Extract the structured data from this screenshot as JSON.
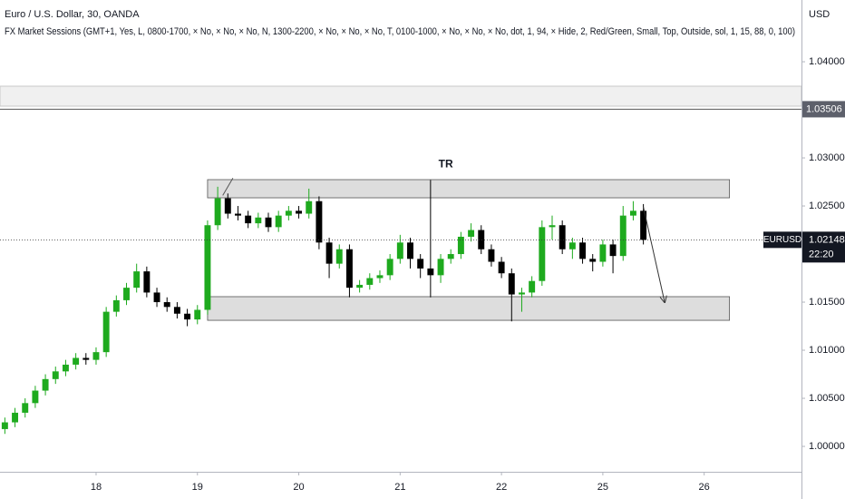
{
  "chart_data": {
    "type": "candlestick",
    "title": "Euro / U.S. Dollar, 30, OANDA",
    "subtitle": "FX Market Sessions (GMT+1, Yes, L, 0800-1700, × No, × No, × No, N, 1300-2200, × No, × No, × No, T, 0100-1000, × No, × No, × No, dot, 1, 94, × Hide, 2, Red/Green, Small, Top, Outside, sol, 1, 15, 88, 0, 100)",
    "currency": "USD",
    "timer": "22:20",
    "up_color": "#1eaa1e",
    "down_color": "#000000",
    "grid": false,
    "xlim": [
      0.052,
      7.96
    ],
    "xticks": [
      {
        "value": 1,
        "label": "18"
      },
      {
        "value": 2,
        "label": "19"
      },
      {
        "value": 3,
        "label": "20"
      },
      {
        "value": 4,
        "label": "21"
      },
      {
        "value": 5,
        "label": "22"
      },
      {
        "value": 6,
        "label": "25"
      },
      {
        "value": 7,
        "label": "26"
      }
    ],
    "ylim": [
      0.99736,
      1.04642
    ],
    "yticks": [
      {
        "value": 1.0,
        "label": "1.00000"
      },
      {
        "value": 1.005,
        "label": "1.00500"
      },
      {
        "value": 1.01,
        "label": "1.01000"
      },
      {
        "value": 1.015,
        "label": "1.01500"
      },
      {
        "value": 1.025,
        "label": "1.02500"
      },
      {
        "value": 1.03,
        "label": "1.03000"
      },
      {
        "value": 1.04,
        "label": "1.04000"
      }
    ],
    "price_line": 1.03506,
    "x": [
      0.1,
      0.2,
      0.3,
      0.4,
      0.5,
      0.6,
      0.7,
      0.8,
      0.9,
      1.0,
      1.1,
      1.2,
      1.3,
      1.4,
      1.5,
      1.6,
      1.7,
      1.8,
      1.9,
      2.0,
      2.1,
      2.2,
      2.3,
      2.4,
      2.5,
      2.6,
      2.7,
      2.8,
      2.9,
      3.0,
      3.1,
      3.2,
      3.3,
      3.4,
      3.5,
      3.6,
      3.7,
      3.8,
      3.9,
      4.0,
      4.1,
      4.2,
      4.3,
      4.4,
      4.5,
      4.6,
      4.7,
      4.8,
      4.9,
      5.0,
      5.1,
      5.2,
      5.3,
      5.4,
      5.5,
      5.6,
      5.7,
      5.8,
      5.9,
      6.0,
      6.1,
      6.2,
      6.3,
      6.4
    ],
    "series": [
      {
        "name": "EURUSD",
        "open": [
          1.0018,
          1.0025,
          1.0035,
          1.0045,
          1.0058,
          1.007,
          1.0078,
          1.0085,
          1.0092,
          1.009,
          1.0098,
          1.014,
          1.0152,
          1.0165,
          1.0182,
          1.016,
          1.015,
          1.0145,
          1.0138,
          1.0132,
          1.0142,
          1.023,
          1.0258,
          1.0242,
          1.024,
          1.0232,
          1.0238,
          1.0228,
          1.024,
          1.0245,
          1.0242,
          1.0255,
          1.0212,
          1.019,
          1.0205,
          1.0165,
          1.0168,
          1.0175,
          1.0178,
          1.0195,
          1.0212,
          1.0195,
          1.0185,
          1.0178,
          1.0195,
          1.02,
          1.0218,
          1.0225,
          1.0205,
          1.0192,
          1.018,
          1.0158,
          1.016,
          1.0172,
          1.0228,
          1.023,
          1.0205,
          1.0212,
          1.0195,
          1.0192,
          1.021,
          1.0198,
          1.024,
          1.0245
        ],
        "high": [
          1.003,
          1.004,
          1.005,
          1.0063,
          1.0075,
          1.0083,
          1.009,
          1.0097,
          1.0097,
          1.0103,
          1.0145,
          1.0157,
          1.017,
          1.019,
          1.0187,
          1.0165,
          1.0155,
          1.015,
          1.0143,
          1.0147,
          1.0235,
          1.027,
          1.0263,
          1.025,
          1.0245,
          1.0243,
          1.0243,
          1.0245,
          1.025,
          1.025,
          1.0268,
          1.026,
          1.0217,
          1.021,
          1.021,
          1.0173,
          1.018,
          1.0183,
          1.02,
          1.022,
          1.0217,
          1.02,
          1.0277,
          1.02,
          1.0205,
          1.0223,
          1.0232,
          1.023,
          1.021,
          1.0197,
          1.0185,
          1.0165,
          1.0177,
          1.0235,
          1.024,
          1.0235,
          1.0217,
          1.0217,
          1.02,
          1.0215,
          1.0215,
          1.025,
          1.0255,
          1.0252
        ],
        "low": [
          1.0013,
          1.002,
          1.003,
          1.004,
          1.0053,
          1.0065,
          1.0073,
          1.008,
          1.0085,
          1.0085,
          1.0093,
          1.0135,
          1.0147,
          1.016,
          1.0155,
          1.0145,
          1.014,
          1.0133,
          1.0125,
          1.0127,
          1.0137,
          1.0225,
          1.0237,
          1.0235,
          1.0227,
          1.0227,
          1.0223,
          1.0223,
          1.0235,
          1.0237,
          1.0237,
          1.0205,
          1.0175,
          1.0185,
          1.0155,
          1.016,
          1.0163,
          1.017,
          1.0173,
          1.019,
          1.0185,
          1.0175,
          1.0155,
          1.017,
          1.019,
          1.0195,
          1.0213,
          1.02,
          1.0187,
          1.0175,
          1.013,
          1.014,
          1.0155,
          1.0167,
          1.0215,
          1.02,
          1.0195,
          1.019,
          1.0182,
          1.0187,
          1.018,
          1.0193,
          1.0235,
          1.021
        ],
        "close": [
          1.0025,
          1.0035,
          1.0045,
          1.0058,
          1.007,
          1.0078,
          1.0085,
          1.0092,
          1.009,
          1.0098,
          1.014,
          1.0152,
          1.0165,
          1.0182,
          1.016,
          1.015,
          1.0145,
          1.0138,
          1.0132,
          1.0142,
          1.023,
          1.0258,
          1.0242,
          1.024,
          1.0232,
          1.0238,
          1.0228,
          1.024,
          1.0245,
          1.0242,
          1.0255,
          1.0212,
          1.019,
          1.0205,
          1.0165,
          1.0168,
          1.0175,
          1.0178,
          1.0195,
          1.0212,
          1.0195,
          1.0185,
          1.0178,
          1.0195,
          1.02,
          1.0218,
          1.0225,
          1.0205,
          1.0192,
          1.018,
          1.0158,
          1.016,
          1.0172,
          1.0228,
          1.023,
          1.0205,
          1.0212,
          1.0195,
          1.0192,
          1.021,
          1.0198,
          1.024,
          1.0245,
          1.02148
        ]
      }
    ],
    "boxes": [
      {
        "x": [
          2.1,
          7.25
        ],
        "y": [
          1.02585,
          1.02774
        ]
      },
      {
        "x": [
          2.1,
          7.25
        ],
        "y": [
          1.01311,
          1.01557
        ]
      }
    ],
    "lines": [
      {
        "x": [
          2.25,
          2.35
        ],
        "y": [
          1.0261,
          1.0279
        ]
      }
    ],
    "arrows": [
      {
        "x": [
          6.4,
          6.61
        ],
        "y": [
          1.0249,
          1.015
        ]
      }
    ],
    "labels": [
      {
        "text": "TR",
        "x": 4.45,
        "y": 1.0293
      }
    ]
  }
}
